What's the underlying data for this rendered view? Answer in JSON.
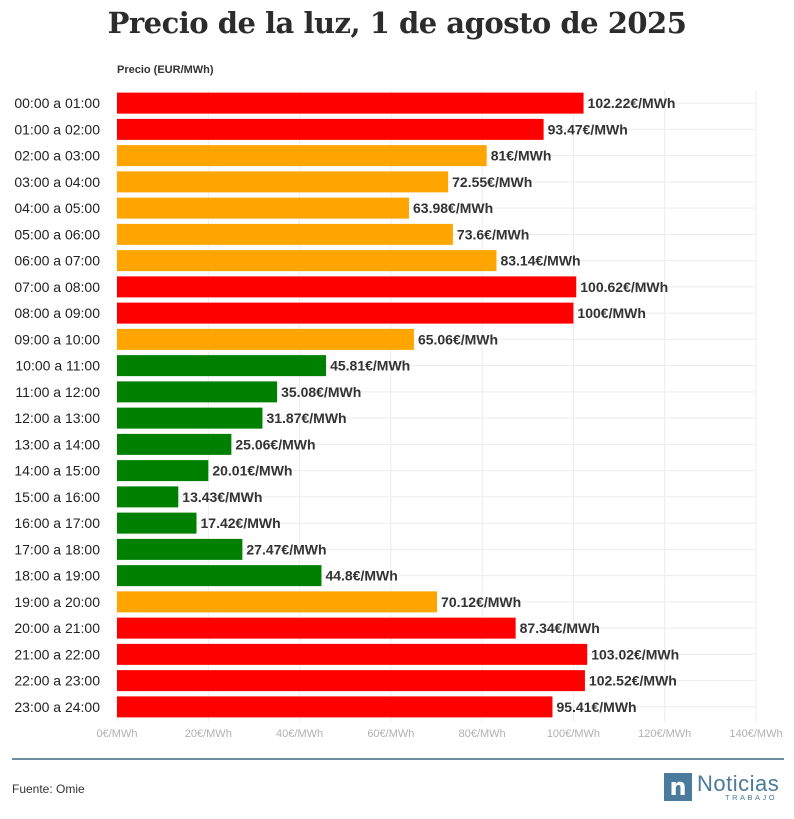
{
  "chart_data": {
    "type": "bar",
    "orientation": "horizontal",
    "title": "Precio de la luz, 1 de agosto de 2025",
    "xlabel": "",
    "ylabel": "Precio (EUR/MWh)",
    "xlim": [
      0,
      140
    ],
    "ticks": [
      0,
      20,
      40,
      60,
      80,
      100,
      120,
      140
    ],
    "tick_labels": [
      "0€/MWh",
      "20€/MWh",
      "40€/MWh",
      "60€/MWh",
      "80€/MWh",
      "100€/MWh",
      "120€/MWh",
      "140€/MWh"
    ],
    "grid": true,
    "categories": [
      "00:00 a 01:00",
      "01:00 a 02:00",
      "02:00 a 03:00",
      "03:00 a 04:00",
      "04:00 a 05:00",
      "05:00 a 06:00",
      "06:00 a 07:00",
      "07:00 a 08:00",
      "08:00 a 09:00",
      "09:00 a 10:00",
      "10:00 a 11:00",
      "11:00 a 12:00",
      "12:00 a 13:00",
      "13:00 a 14:00",
      "14:00 a 15:00",
      "15:00 a 16:00",
      "16:00 a 17:00",
      "17:00 a 18:00",
      "18:00 a 19:00",
      "19:00 a 20:00",
      "20:00 a 21:00",
      "21:00 a 22:00",
      "22:00 a 23:00",
      "23:00 a 24:00"
    ],
    "values": [
      102.22,
      93.47,
      81,
      72.55,
      63.98,
      73.6,
      83.14,
      100.62,
      100,
      65.06,
      45.81,
      35.08,
      31.87,
      25.06,
      20.01,
      13.43,
      17.42,
      27.47,
      44.8,
      70.12,
      87.34,
      103.02,
      102.52,
      95.41
    ],
    "data_labels": [
      "102.22€/MWh",
      "93.47€/MWh",
      "81€/MWh",
      "72.55€/MWh",
      "63.98€/MWh",
      "73.6€/MWh",
      "83.14€/MWh",
      "100.62€/MWh",
      "100€/MWh",
      "65.06€/MWh",
      "45.81€/MWh",
      "35.08€/MWh",
      "31.87€/MWh",
      "25.06€/MWh",
      "20.01€/MWh",
      "13.43€/MWh",
      "17.42€/MWh",
      "27.47€/MWh",
      "44.8€/MWh",
      "70.12€/MWh",
      "87.34€/MWh",
      "103.02€/MWh",
      "102.52€/MWh",
      "95.41€/MWh"
    ],
    "levels": [
      "high",
      "high",
      "mid",
      "mid",
      "mid",
      "mid",
      "mid",
      "high",
      "high",
      "mid",
      "low",
      "low",
      "low",
      "low",
      "low",
      "low",
      "low",
      "low",
      "low",
      "mid",
      "high",
      "high",
      "high",
      "high"
    ],
    "colors": {
      "high": "#ff0000",
      "mid": "#ffa500",
      "low": "#008000"
    }
  },
  "footer": {
    "source": "Fuente: Omie",
    "logo_letter": "n",
    "logo_word": "Noticias",
    "logo_sub": "TRABAJO"
  }
}
